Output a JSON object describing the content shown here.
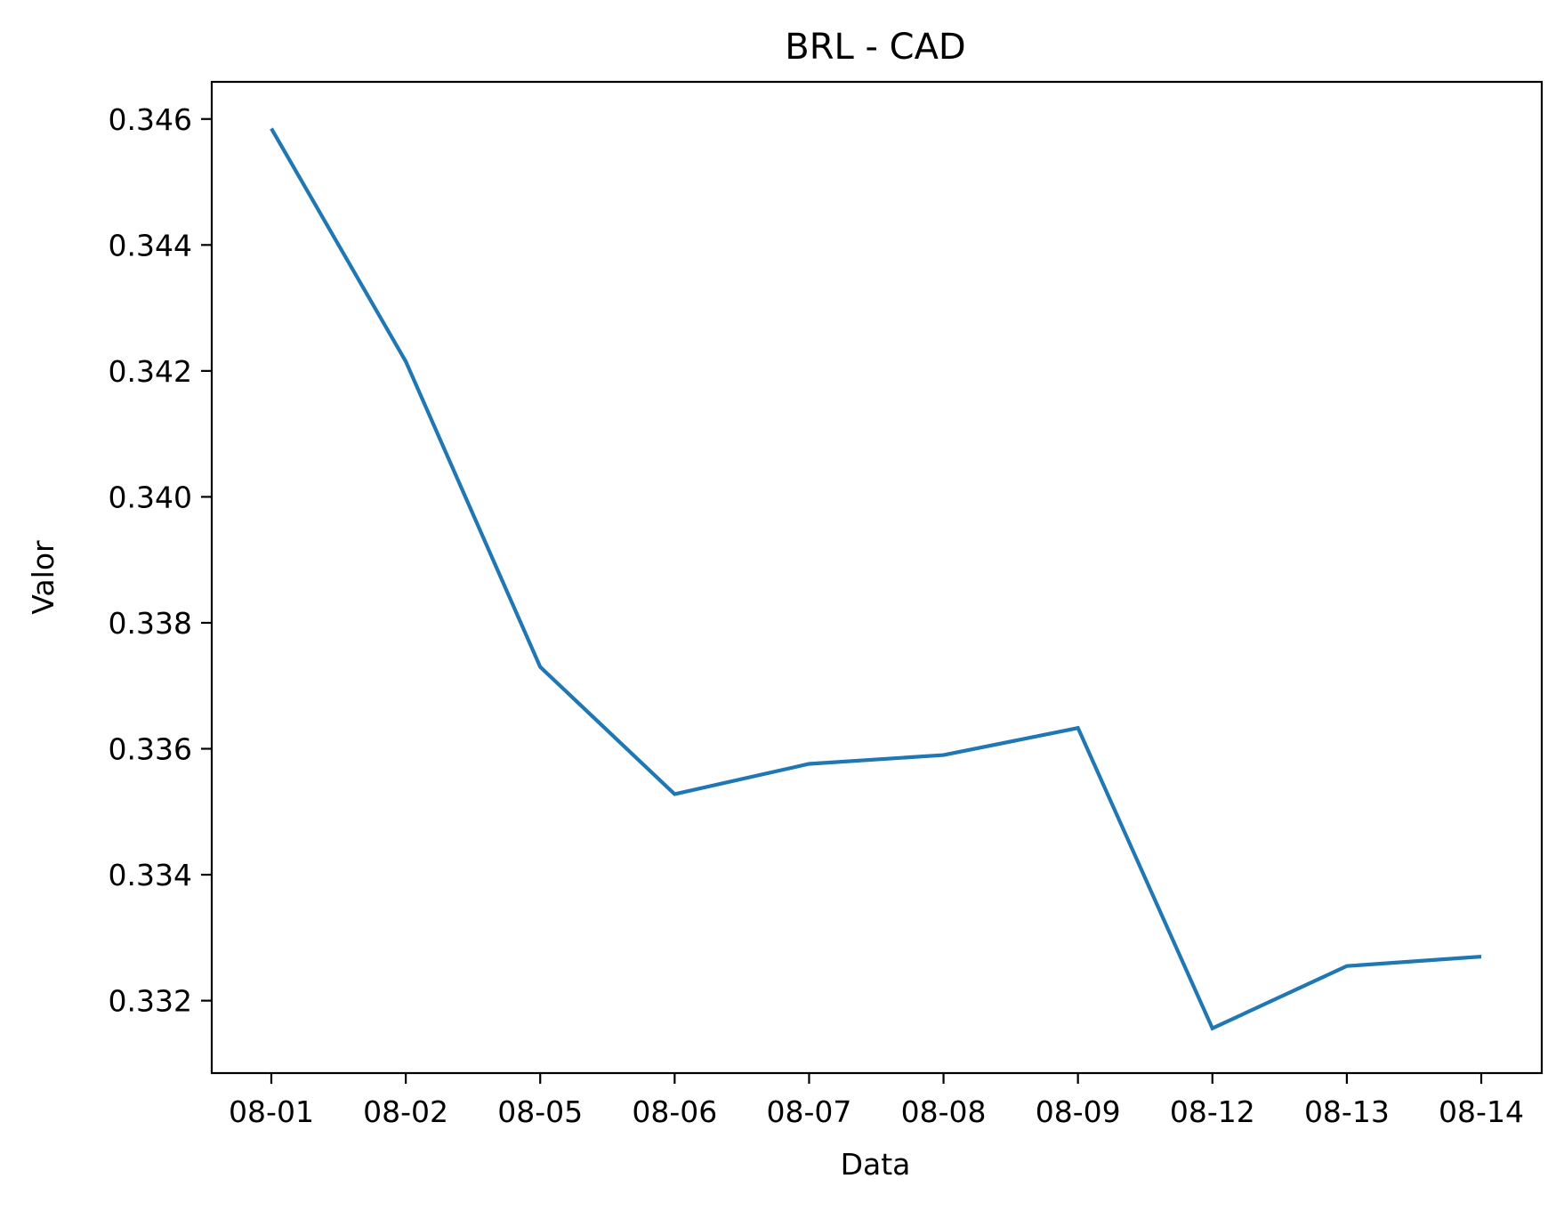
{
  "chart_data": {
    "type": "line",
    "title": "BRL - CAD",
    "xlabel": "Data",
    "ylabel": "Valor",
    "categories": [
      "08-01",
      "08-02",
      "08-05",
      "08-06",
      "08-07",
      "08-08",
      "08-09",
      "08-12",
      "08-13",
      "08-14"
    ],
    "series": [
      {
        "values": [
          0.34585,
          0.34215,
          0.3373,
          0.33528,
          0.33576,
          0.3359,
          0.33633,
          0.33156,
          0.33255,
          0.3327
        ]
      }
    ],
    "yticks": [
      0.332,
      0.334,
      0.336,
      0.338,
      0.34,
      0.342,
      0.344,
      0.346
    ],
    "ytick_labels": [
      "0.332",
      "0.334",
      "0.336",
      "0.338",
      "0.340",
      "0.342",
      "0.344",
      "0.346"
    ],
    "ylim": [
      0.33085,
      0.34659
    ],
    "grid": false,
    "line_color": "#1f77b4"
  }
}
